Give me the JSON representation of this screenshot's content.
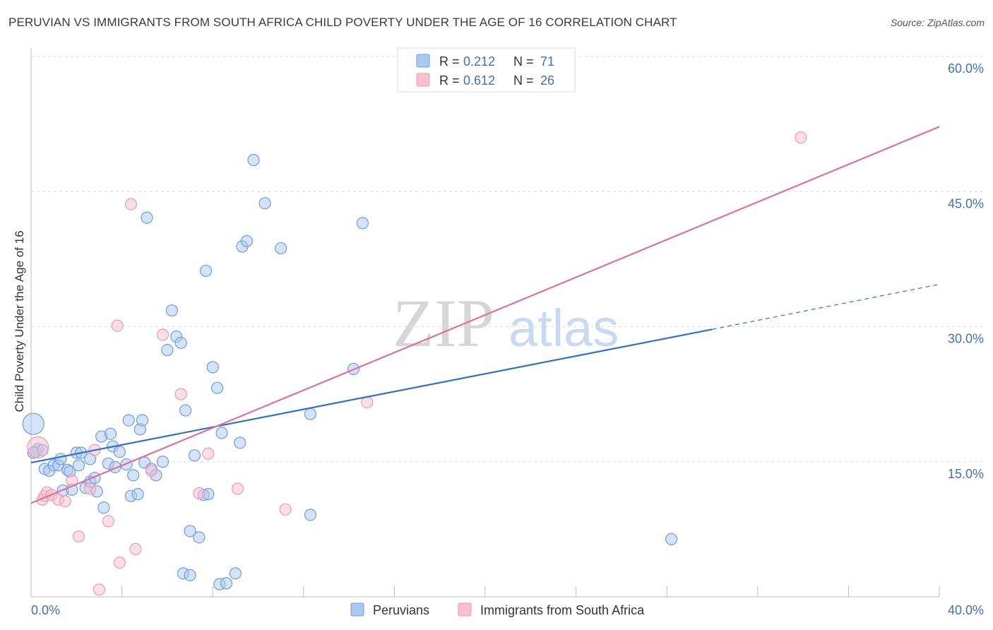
{
  "header": {
    "title": "PERUVIAN VS IMMIGRANTS FROM SOUTH AFRICA CHILD POVERTY UNDER THE AGE OF 16 CORRELATION CHART",
    "source": "Source: ZipAtlas.com"
  },
  "watermark": {
    "zip": "ZIP",
    "atlas": "atlas"
  },
  "colors": {
    "blue_fill": "#aac8f0",
    "blue_stroke": "#6f9edb",
    "blue_line": "#2f6fd1",
    "pink_fill": "#f7bfd0",
    "pink_stroke": "#ec9ab5",
    "pink_line": "#e0709a",
    "tick_text": "#3f6fc4",
    "grid": "#dddddd"
  },
  "legend": {
    "rows": [
      {
        "r_label": "R =",
        "r_value": "0.212",
        "n_label": "N =",
        "n_value": "71"
      },
      {
        "r_label": "R =",
        "r_value": "0.612",
        "n_label": "N =",
        "n_value": "26"
      }
    ]
  },
  "bottom_legend": {
    "items": [
      "Peruvians",
      "Immigrants from South Africa"
    ]
  },
  "chart_data": {
    "type": "scatter",
    "title": "PERUVIAN VS IMMIGRANTS FROM SOUTH AFRICA CHILD POVERTY UNDER THE AGE OF 16 CORRELATION CHART",
    "xlabel": "",
    "ylabel": "Child Poverty Under the Age of 16",
    "xlim": [
      0,
      40
    ],
    "ylim": [
      0,
      60
    ],
    "x_tick_labels": [
      "0.0%",
      "40.0%"
    ],
    "y_ticks": [
      15,
      30,
      45,
      60
    ],
    "y_tick_labels": [
      "15.0%",
      "30.0%",
      "45.0%",
      "60.0%"
    ],
    "legend_position": "top-center",
    "series": [
      {
        "name": "Peruvians",
        "color": "#aac8f0",
        "r": 0.212,
        "n": 71,
        "points": [
          [
            0.1,
            19.2
          ],
          [
            0.2,
            16.1
          ],
          [
            0.3,
            16.4
          ],
          [
            0.5,
            16.3
          ],
          [
            0.6,
            14.2
          ],
          [
            0.8,
            14.0
          ],
          [
            1.0,
            14.6
          ],
          [
            1.2,
            14.6
          ],
          [
            1.3,
            15.3
          ],
          [
            1.4,
            11.8
          ],
          [
            1.6,
            14.1
          ],
          [
            1.7,
            13.9
          ],
          [
            1.8,
            11.9
          ],
          [
            2.0,
            16.0
          ],
          [
            2.1,
            14.6
          ],
          [
            2.2,
            16.0
          ],
          [
            2.4,
            12.1
          ],
          [
            2.6,
            15.3
          ],
          [
            2.6,
            12.8
          ],
          [
            2.8,
            13.2
          ],
          [
            2.9,
            11.7
          ],
          [
            3.1,
            17.8
          ],
          [
            3.2,
            9.9
          ],
          [
            3.4,
            14.8
          ],
          [
            3.5,
            18.1
          ],
          [
            3.6,
            16.7
          ],
          [
            3.7,
            14.4
          ],
          [
            3.9,
            16.1
          ],
          [
            4.2,
            14.7
          ],
          [
            4.3,
            19.6
          ],
          [
            4.4,
            11.2
          ],
          [
            4.5,
            13.5
          ],
          [
            4.7,
            11.4
          ],
          [
            4.8,
            18.6
          ],
          [
            4.9,
            19.6
          ],
          [
            5.0,
            14.9
          ],
          [
            5.1,
            42.1
          ],
          [
            5.3,
            14.2
          ],
          [
            5.5,
            13.5
          ],
          [
            5.8,
            15.0
          ],
          [
            6.0,
            27.4
          ],
          [
            6.2,
            31.8
          ],
          [
            6.4,
            28.9
          ],
          [
            6.6,
            28.2
          ],
          [
            6.7,
            2.6
          ],
          [
            6.8,
            20.7
          ],
          [
            7.0,
            7.3
          ],
          [
            7.0,
            2.4
          ],
          [
            7.2,
            15.7
          ],
          [
            7.4,
            6.6
          ],
          [
            7.6,
            11.3
          ],
          [
            7.7,
            36.2
          ],
          [
            7.8,
            11.4
          ],
          [
            8.0,
            25.5
          ],
          [
            8.2,
            23.2
          ],
          [
            8.3,
            1.4
          ],
          [
            8.4,
            18.2
          ],
          [
            8.6,
            1.5
          ],
          [
            9.0,
            2.6
          ],
          [
            9.2,
            17.1
          ],
          [
            9.3,
            38.9
          ],
          [
            9.5,
            39.5
          ],
          [
            9.8,
            48.5
          ],
          [
            10.3,
            43.7
          ],
          [
            11.0,
            38.7
          ],
          [
            12.3,
            20.3
          ],
          [
            12.3,
            9.1
          ],
          [
            14.2,
            25.3
          ],
          [
            14.6,
            41.5
          ],
          [
            28.2,
            6.4
          ],
          [
            0.1,
            16.0
          ]
        ]
      },
      {
        "name": "Immigrants from South Africa",
        "color": "#f7bfd0",
        "r": 0.612,
        "n": 26,
        "points": [
          [
            0.3,
            16.6
          ],
          [
            0.5,
            10.8
          ],
          [
            0.6,
            11.2
          ],
          [
            0.7,
            11.6
          ],
          [
            0.9,
            11.3
          ],
          [
            1.2,
            10.8
          ],
          [
            1.5,
            10.6
          ],
          [
            1.8,
            12.9
          ],
          [
            2.1,
            6.7
          ],
          [
            2.6,
            12.0
          ],
          [
            2.8,
            16.3
          ],
          [
            3.0,
            0.8
          ],
          [
            3.4,
            8.4
          ],
          [
            3.8,
            30.1
          ],
          [
            3.9,
            3.8
          ],
          [
            4.4,
            43.6
          ],
          [
            4.6,
            5.3
          ],
          [
            5.3,
            14.0
          ],
          [
            5.8,
            29.1
          ],
          [
            6.6,
            22.5
          ],
          [
            7.4,
            11.5
          ],
          [
            7.8,
            15.9
          ],
          [
            9.1,
            12.0
          ],
          [
            11.2,
            9.7
          ],
          [
            14.8,
            21.6
          ],
          [
            33.9,
            51.0
          ]
        ]
      }
    ],
    "trend_lines": [
      {
        "series": "Peruvians",
        "solid_from": [
          0,
          14.9
        ],
        "solid_to": [
          30,
          29.7
        ],
        "dashed_to": [
          40,
          34.7
        ]
      },
      {
        "series": "Immigrants from South Africa",
        "solid_from": [
          0,
          10.4
        ],
        "solid_to": [
          40,
          52.2
        ]
      }
    ]
  }
}
